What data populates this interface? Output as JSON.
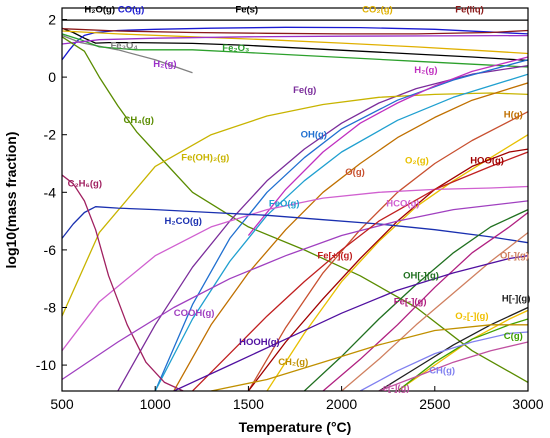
{
  "chart_data": {
    "type": "line",
    "xlabel": "Temperature (°C)",
    "ylabel": "log10(mass fraction)",
    "xlim": [
      500,
      3000
    ],
    "ylim": [
      -10.9,
      2.4
    ],
    "x_ticks": [
      500,
      1000,
      1500,
      2000,
      2500,
      3000
    ],
    "y_ticks": [
      -10,
      -8,
      -6,
      -4,
      -2,
      0,
      2
    ],
    "grid": false,
    "legend": "none",
    "series": [
      {
        "name": "Fe(s)",
        "color": "#000000",
        "x": [
          500,
          700,
          1000,
          1500,
          2000,
          2500,
          3000
        ],
        "y": [
          1.98,
          1.98,
          1.98,
          1.98,
          1.98,
          1.98,
          1.98
        ]
      },
      {
        "name": "H2O(g)",
        "color": "#000000",
        "x": [
          500,
          560,
          620,
          680,
          750,
          900,
          1200,
          1500,
          1800,
          2100,
          2400,
          2700,
          3000
        ],
        "y": [
          1.7,
          1.55,
          1.35,
          1.18,
          1.2,
          1.2,
          1.17,
          1.1,
          1.0,
          0.9,
          0.8,
          0.7,
          0.58
        ]
      },
      {
        "name": "CO(g)",
        "color": "#1a1ad0",
        "x": [
          500,
          540,
          580,
          620,
          680,
          800,
          1000,
          1300,
          1700,
          2100,
          2500,
          3000
        ],
        "y": [
          0.6,
          0.95,
          1.25,
          1.45,
          1.55,
          1.62,
          1.66,
          1.7,
          1.73,
          1.72,
          1.66,
          1.5
        ]
      },
      {
        "name": "CO2(g)",
        "color": "#e0b000",
        "x": [
          500,
          800,
          1200,
          1600,
          2000,
          2400,
          2800,
          3000
        ],
        "y": [
          1.6,
          1.5,
          1.4,
          1.3,
          1.18,
          1.05,
          0.9,
          0.82
        ]
      },
      {
        "name": "Fe(liq)",
        "color": "#8b1a1a",
        "x": [
          500,
          800,
          1200,
          1600,
          2000,
          2400,
          2800,
          3000
        ],
        "y": [
          1.68,
          1.6,
          1.55,
          1.52,
          1.5,
          1.5,
          1.55,
          1.62
        ]
      },
      {
        "name": "Fe3O4",
        "color": "#808080",
        "x": [
          500,
          600,
          800,
          1000,
          1200
        ],
        "y": [
          1.45,
          1.2,
          0.95,
          0.6,
          0.15
        ]
      },
      {
        "name": "Fe2O3",
        "color": "#2ca02c",
        "x": [
          500,
          600,
          700,
          900,
          1200,
          1500,
          1800,
          2100,
          2400,
          2700,
          3000
        ],
        "y": [
          1.5,
          1.3,
          1.05,
          0.95,
          0.95,
          0.85,
          0.75,
          0.65,
          0.55,
          0.45,
          0.35
        ]
      },
      {
        "name": "H2(g)",
        "color": "#9b30c8",
        "x": [
          500,
          700,
          1000,
          1500,
          2000,
          2500,
          3000
        ],
        "y": [
          1.15,
          1.3,
          1.35,
          1.4,
          1.42,
          1.43,
          1.44
        ]
      },
      {
        "name": "CH4(g)",
        "color": "#5a8c00",
        "x": [
          500,
          620,
          700,
          800,
          900,
          1000,
          1200,
          1500,
          1800,
          2100,
          2400,
          2700,
          3000
        ],
        "y": [
          1.4,
          0.9,
          0.0,
          -1.0,
          -1.9,
          -2.6,
          -4.0,
          -5.2,
          -6.0,
          -6.9,
          -8.0,
          -9.5,
          -10.6
        ]
      },
      {
        "name": "Fe(g)",
        "color": "#7b2d9b",
        "x": [
          800,
          1000,
          1200,
          1400,
          1600,
          1800,
          2000,
          2200,
          2400,
          2700,
          3000
        ],
        "y": [
          -10.9,
          -8.6,
          -6.6,
          -5.0,
          -3.6,
          -2.5,
          -1.6,
          -0.9,
          -0.4,
          0.1,
          0.4
        ]
      },
      {
        "name": "Fe(OH)2(g)",
        "color": "#c8b400",
        "x": [
          500,
          700,
          1000,
          1300,
          1600,
          1900,
          2200,
          2500,
          2800,
          3000
        ],
        "y": [
          -8.3,
          -5.4,
          -3.1,
          -2.0,
          -1.35,
          -0.95,
          -0.7,
          -0.6,
          -0.55,
          -0.6
        ]
      },
      {
        "name": "OH(g)",
        "color": "#2070d0",
        "x": [
          1000,
          1200,
          1400,
          1600,
          1800,
          2000,
          2300,
          2600,
          3000
        ],
        "y": [
          -10.9,
          -7.9,
          -5.6,
          -4.0,
          -2.8,
          -1.8,
          -0.8,
          -0.1,
          0.6
        ]
      },
      {
        "name": "H2(g) Fe-phase",
        "color": "#c030c0",
        "x": [
          1500,
          1700,
          1900,
          2100,
          2300,
          2500,
          2700,
          3000
        ],
        "y": [
          -5.5,
          -3.9,
          -2.6,
          -1.6,
          -0.9,
          -0.3,
          0.2,
          0.7
        ]
      },
      {
        "name": "H(g)",
        "color": "#c07000",
        "x": [
          1100,
          1300,
          1500,
          1700,
          1900,
          2100,
          2300,
          2500,
          2700,
          3000
        ],
        "y": [
          -10.9,
          -8.6,
          -6.8,
          -5.3,
          -4.0,
          -3.0,
          -2.1,
          -1.4,
          -0.8,
          -0.2
        ]
      },
      {
        "name": "O(g)",
        "color": "#c85030",
        "x": [
          1500,
          1700,
          1900,
          2100,
          2300,
          2500,
          2700,
          3000
        ],
        "y": [
          -10.9,
          -8.7,
          -6.8,
          -5.3,
          -4.0,
          -3.0,
          -2.2,
          -1.2
        ]
      },
      {
        "name": "O2(g)",
        "color": "#e8c000",
        "x": [
          1600,
          1800,
          2000,
          2200,
          2400,
          2600,
          2800,
          3000
        ],
        "y": [
          -10.9,
          -8.9,
          -7.1,
          -5.7,
          -4.5,
          -3.6,
          -2.8,
          -2.0
        ]
      },
      {
        "name": "HOO(g)",
        "color": "#a00000",
        "x": [
          1500,
          1700,
          1900,
          2100,
          2300,
          2500,
          2700,
          2900,
          3000
        ],
        "y": [
          -10.9,
          -9.2,
          -7.7,
          -6.3,
          -5.0,
          -3.9,
          -3.1,
          -2.6,
          -2.5
        ]
      },
      {
        "name": "FeO(g)",
        "color": "#20a0d0",
        "x": [
          1000,
          1200,
          1400,
          1600,
          1800,
          2000,
          2300,
          2600,
          3000
        ],
        "y": [
          -10.9,
          -8.4,
          -6.4,
          -4.8,
          -3.6,
          -2.6,
          -1.5,
          -0.7,
          0.1
        ]
      },
      {
        "name": "HCO(g)",
        "color": "#d060d0",
        "x": [
          500,
          700,
          1000,
          1300,
          1600,
          1900,
          2200,
          2500,
          2800,
          3000
        ],
        "y": [
          -9.5,
          -7.8,
          -6.2,
          -5.2,
          -4.6,
          -4.2,
          -4.0,
          -3.9,
          -3.85,
          -3.8
        ]
      },
      {
        "name": "H2CO(g)",
        "color": "#1a30b0",
        "x": [
          500,
          560,
          620,
          680,
          800,
          1000,
          1300,
          1600,
          1900,
          2200,
          2500,
          2800,
          3000
        ],
        "y": [
          -5.6,
          -5.1,
          -4.7,
          -4.5,
          -4.55,
          -4.6,
          -4.7,
          -4.8,
          -4.95,
          -5.1,
          -5.3,
          -5.55,
          -5.75
        ]
      },
      {
        "name": "C2H6(g)",
        "color": "#a02060",
        "x": [
          500,
          560,
          620,
          680,
          750,
          850,
          950,
          1050,
          1150
        ],
        "y": [
          -3.4,
          -3.7,
          -4.3,
          -5.3,
          -6.9,
          -8.6,
          -9.9,
          -10.6,
          -10.9
        ]
      },
      {
        "name": "COOH(g)",
        "color": "#a040c0",
        "x": [
          500,
          800,
          1100,
          1400,
          1700,
          2000,
          2300,
          2600,
          3000
        ],
        "y": [
          -10.5,
          -9.2,
          -8.0,
          -7.0,
          -6.2,
          -5.5,
          -5.0,
          -4.6,
          -4.3
        ]
      },
      {
        "name": "Fe[+](g)",
        "color": "#c02020",
        "x": [
          1200,
          1400,
          1600,
          1800,
          2000,
          2200,
          2500,
          2800,
          3000
        ],
        "y": [
          -10.9,
          -9.6,
          -8.3,
          -7.1,
          -6.0,
          -5.0,
          -3.9,
          -3.1,
          -2.6
        ]
      },
      {
        "name": "OH[-](g)",
        "color": "#207020",
        "x": [
          1800,
          2000,
          2200,
          2400,
          2600,
          2800,
          3000
        ],
        "y": [
          -10.9,
          -9.7,
          -8.4,
          -7.2,
          -6.1,
          -5.2,
          -4.6
        ]
      },
      {
        "name": "Fe[-](g)",
        "color": "#b02080",
        "x": [
          1900,
          2100,
          2300,
          2500,
          2700,
          2900,
          3000
        ],
        "y": [
          -10.9,
          -9.8,
          -8.6,
          -7.3,
          -6.1,
          -5.2,
          -4.7
        ]
      },
      {
        "name": "O[-](g)",
        "color": "#d08060",
        "x": [
          2000,
          2200,
          2400,
          2600,
          2800,
          3000
        ],
        "y": [
          -10.9,
          -9.8,
          -8.6,
          -7.5,
          -6.4,
          -5.4
        ]
      },
      {
        "name": "HOOH(g)",
        "color": "#5010a0",
        "x": [
          1100,
          1400,
          1700,
          2000,
          2300,
          2600,
          2900,
          3000
        ],
        "y": [
          -10.9,
          -10.0,
          -9.1,
          -8.2,
          -7.4,
          -6.8,
          -6.3,
          -6.2
        ]
      },
      {
        "name": "O2[-](g)",
        "color": "#f0c000",
        "x": [
          2300,
          2500,
          2700,
          2900,
          3000
        ],
        "y": [
          -10.9,
          -10.0,
          -9.1,
          -8.4,
          -8.1
        ]
      },
      {
        "name": "H[-](g)",
        "color": "#202020",
        "x": [
          2200,
          2400,
          2600,
          2800,
          3000
        ],
        "y": [
          -10.9,
          -10.1,
          -9.3,
          -8.6,
          -8.0
        ]
      },
      {
        "name": "C(g)",
        "color": "#40a000",
        "x": [
          2300,
          2500,
          2700,
          2900,
          3000
        ],
        "y": [
          -10.9,
          -9.9,
          -9.1,
          -8.6,
          -8.4
        ]
      },
      {
        "name": "CH2(g)",
        "color": "#c09000",
        "x": [
          1300,
          1600,
          1900,
          2200,
          2500,
          2800,
          3000
        ],
        "y": [
          -10.9,
          -10.5,
          -9.9,
          -9.3,
          -8.8,
          -8.6,
          -8.6
        ]
      },
      {
        "name": "CH(g)",
        "color": "#8080f0",
        "x": [
          2100,
          2300,
          2500,
          2700,
          2900,
          3000
        ],
        "y": [
          -10.9,
          -10.2,
          -9.6,
          -9.2,
          -8.9,
          -8.85
        ]
      },
      {
        "name": "e[-](g)",
        "color": "#c050a0",
        "x": [
          2200,
          2400,
          2600,
          2800,
          3000
        ],
        "y": [
          -10.9,
          -10.4,
          -9.9,
          -9.5,
          -9.2
        ]
      }
    ],
    "annotations": [
      {
        "text": "H₂O(g)",
        "x": 620,
        "y": 2.25,
        "color": "#000000"
      },
      {
        "text": "CO(g)",
        "x": 800,
        "y": 2.25,
        "color": "#1a1ad0"
      },
      {
        "text": "Fe(s)",
        "x": 1430,
        "y": 2.25,
        "color": "#000000"
      },
      {
        "text": "CO₂(g)",
        "x": 2110,
        "y": 2.25,
        "color": "#e0b000"
      },
      {
        "text": "Fe(liq)",
        "x": 2610,
        "y": 2.25,
        "color": "#8b1a1a"
      },
      {
        "text": "Fe₃O₄",
        "x": 760,
        "y": 1.0,
        "color": "#808080"
      },
      {
        "text": "Fe₂O₃",
        "x": 1360,
        "y": 0.9,
        "color": "#2ca02c"
      },
      {
        "text": "H₂(g)",
        "x": 990,
        "y": 0.35,
        "color": "#9b30c8"
      },
      {
        "text": "Fe(g)",
        "x": 1740,
        "y": -0.55,
        "color": "#7b2d9b"
      },
      {
        "text": "H₂(g)",
        "x": 2390,
        "y": 0.15,
        "color": "#c030c0"
      },
      {
        "text": "CH₄(g)",
        "x": 830,
        "y": -1.6,
        "color": "#5a8c00"
      },
      {
        "text": "Fe(OH)₂(g)",
        "x": 1140,
        "y": -2.9,
        "color": "#c8b400"
      },
      {
        "text": "OH(g)",
        "x": 1780,
        "y": -2.1,
        "color": "#2070d0"
      },
      {
        "text": "H(g)",
        "x": 2870,
        "y": -1.4,
        "color": "#c07000"
      },
      {
        "text": "O(g)",
        "x": 2020,
        "y": -3.4,
        "color": "#c85030"
      },
      {
        "text": "O₂(g)",
        "x": 2340,
        "y": -3.0,
        "color": "#e8c000"
      },
      {
        "text": "HOO(g)",
        "x": 2690,
        "y": -3.0,
        "color": "#a00000"
      },
      {
        "text": "C₂H₆(g)",
        "x": 530,
        "y": -3.8,
        "color": "#a02060"
      },
      {
        "text": "FeO(g)",
        "x": 1610,
        "y": -4.5,
        "color": "#20a0d0"
      },
      {
        "text": "HCO(g)",
        "x": 2240,
        "y": -4.5,
        "color": "#d060d0"
      },
      {
        "text": "H₂CO(g)",
        "x": 1050,
        "y": -5.1,
        "color": "#1a30b0"
      },
      {
        "text": "Fe[+](g)",
        "x": 1870,
        "y": -6.3,
        "color": "#c02020"
      },
      {
        "text": "OH[-](g)",
        "x": 2330,
        "y": -7.0,
        "color": "#207020"
      },
      {
        "text": "O[-](g)",
        "x": 2850,
        "y": -6.3,
        "color": "#d08060"
      },
      {
        "text": "Fe[-](g)",
        "x": 2280,
        "y": -7.9,
        "color": "#b02080"
      },
      {
        "text": "O₂[-](g)",
        "x": 2610,
        "y": -8.4,
        "color": "#f0c000"
      },
      {
        "text": "H[-](g)",
        "x": 2860,
        "y": -7.8,
        "color": "#202020"
      },
      {
        "text": "COOH(g)",
        "x": 1100,
        "y": -8.3,
        "color": "#a040c0"
      },
      {
        "text": "HOOH(g)",
        "x": 1450,
        "y": -9.3,
        "color": "#5010a0"
      },
      {
        "text": "C(g)",
        "x": 2870,
        "y": -9.1,
        "color": "#40a000"
      },
      {
        "text": "CH₂(g)",
        "x": 1660,
        "y": -10.0,
        "color": "#c09000"
      },
      {
        "text": "CH(g)",
        "x": 2470,
        "y": -10.3,
        "color": "#8080f0"
      },
      {
        "text": "e[-](g)",
        "x": 2220,
        "y": -10.9,
        "color": "#c050a0"
      }
    ]
  }
}
